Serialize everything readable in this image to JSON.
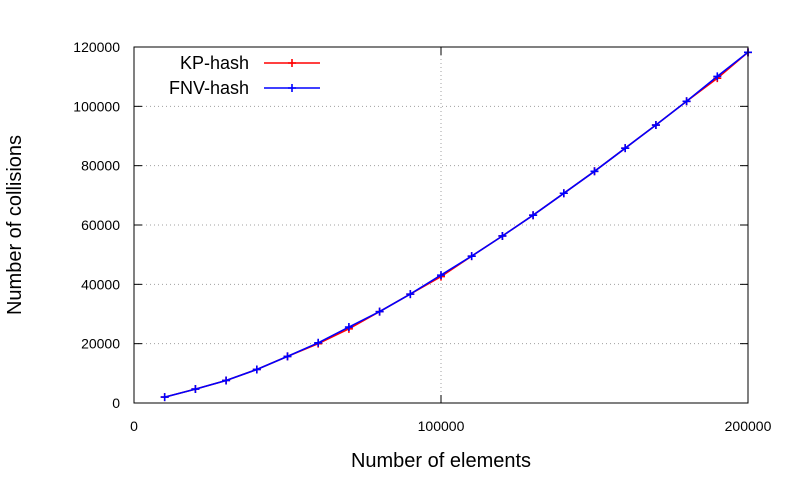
{
  "chart_data": {
    "type": "line",
    "title": "",
    "xlabel": "Number of elements",
    "ylabel": "Number of collisions",
    "xlim": [
      0,
      200000
    ],
    "ylim": [
      0,
      120000
    ],
    "x_ticks": [
      0,
      100000,
      200000
    ],
    "y_ticks": [
      0,
      20000,
      40000,
      60000,
      80000,
      100000,
      120000
    ],
    "x_tick_labels": [
      "0",
      "100000",
      "200000"
    ],
    "y_tick_labels": [
      "0",
      "20000",
      "40000",
      "60000",
      "80000",
      "100000",
      "120000"
    ],
    "grid": true,
    "legend_position": "top-left",
    "x": [
      10000,
      20000,
      30000,
      40000,
      50000,
      60000,
      70000,
      80000,
      90000,
      100000,
      110000,
      120000,
      130000,
      140000,
      150000,
      160000,
      170000,
      180000,
      190000,
      200000
    ],
    "series": [
      {
        "name": "KP-hash",
        "color": "#ff0000",
        "values": [
          2000,
          4700,
          7600,
          11300,
          15700,
          20000,
          25000,
          30800,
          36700,
          42600,
          49500,
          56300,
          63300,
          70700,
          78100,
          85900,
          93700,
          101700,
          109500,
          118200
        ]
      },
      {
        "name": "FNV-hash",
        "color": "#0000ff",
        "values": [
          2000,
          4700,
          7600,
          11300,
          15700,
          20300,
          25600,
          30800,
          36700,
          43100,
          49500,
          56300,
          63300,
          70700,
          78100,
          85900,
          93700,
          101700,
          110100,
          118200
        ]
      }
    ]
  }
}
